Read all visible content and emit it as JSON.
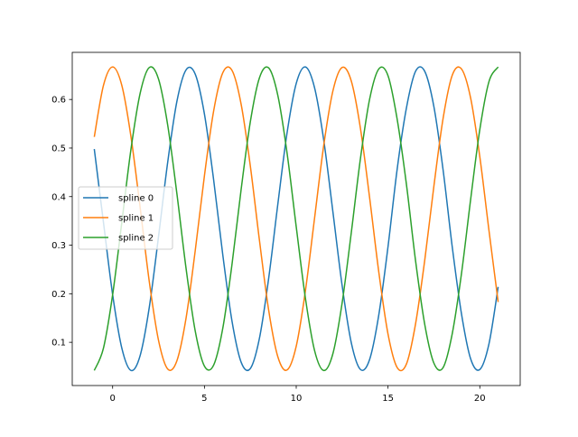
{
  "chart_data": {
    "type": "line",
    "title": "",
    "xlabel": "",
    "ylabel": "",
    "xlim": [
      -2.2,
      22.2
    ],
    "ylim": [
      0.011,
      0.697
    ],
    "xticks": [
      0,
      5,
      10,
      15,
      20
    ],
    "xtick_labels": [
      "0",
      "5",
      "10",
      "15",
      "20"
    ],
    "yticks": [
      0.1,
      0.2,
      0.3,
      0.4,
      0.5,
      0.6
    ],
    "ytick_labels": [
      "0.1",
      "0.2",
      "0.3",
      "0.4",
      "0.5",
      "0.6"
    ],
    "grid": false,
    "legend_position": "center-left",
    "x": [
      -1,
      -0.5,
      0,
      0.5,
      1,
      1.5,
      2,
      2.5,
      3,
      3.5,
      4,
      4.5,
      5,
      5.5,
      6,
      6.5,
      7,
      7.5,
      8,
      8.5,
      9,
      9.5,
      10,
      10.5,
      11,
      11.5,
      12,
      12.5,
      13,
      13.5,
      14,
      14.5,
      15,
      15.5,
      16,
      16.5,
      17,
      17.5,
      18,
      18.5,
      19,
      19.5,
      20,
      20.5,
      21
    ],
    "series": [
      {
        "name": "spline 0",
        "color": "#1f77b4",
        "values": [
          0.498,
          0.347,
          0.198,
          0.088,
          0.042,
          0.073,
          0.173,
          0.318,
          0.471,
          0.596,
          0.661,
          0.652,
          0.57,
          0.435,
          0.28,
          0.144,
          0.059,
          0.046,
          0.109,
          0.232,
          0.385,
          0.531,
          0.633,
          0.667,
          0.624,
          0.516,
          0.368,
          0.217,
          0.099,
          0.044,
          0.065,
          0.157,
          0.297,
          0.457,
          0.582,
          0.658,
          0.658,
          0.585,
          0.455,
          0.296,
          0.159,
          0.066,
          0.044,
          0.097,
          0.214
        ]
      },
      {
        "name": "spline 1",
        "color": "#ff7f0e",
        "values": [
          0.523,
          0.629,
          0.667,
          0.629,
          0.523,
          0.377,
          0.224,
          0.104,
          0.045,
          0.062,
          0.15,
          0.289,
          0.443,
          0.576,
          0.655,
          0.66,
          0.59,
          0.463,
          0.309,
          0.166,
          0.07,
          0.043,
          0.092,
          0.206,
          0.356,
          0.506,
          0.618,
          0.666,
          0.638,
          0.54,
          0.397,
          0.244,
          0.117,
          0.048,
          0.055,
          0.138,
          0.269,
          0.422,
          0.561,
          0.65,
          0.663,
          0.603,
          0.482,
          0.33,
          0.183
        ]
      },
      {
        "name": "spline 2",
        "color": "#2ca02c",
        "values": [
          0.042,
          0.088,
          0.198,
          0.347,
          0.498,
          0.613,
          0.666,
          0.642,
          0.547,
          0.406,
          0.252,
          0.123,
          0.051,
          0.053,
          0.129,
          0.26,
          0.415,
          0.554,
          0.645,
          0.665,
          0.608,
          0.49,
          0.338,
          0.191,
          0.083,
          0.042,
          0.077,
          0.181,
          0.326,
          0.479,
          0.601,
          0.663,
          0.649,
          0.559,
          0.426,
          0.268,
          0.137,
          0.057,
          0.048,
          0.118,
          0.241,
          0.394,
          0.538,
          0.637,
          0.667
        ]
      }
    ]
  }
}
